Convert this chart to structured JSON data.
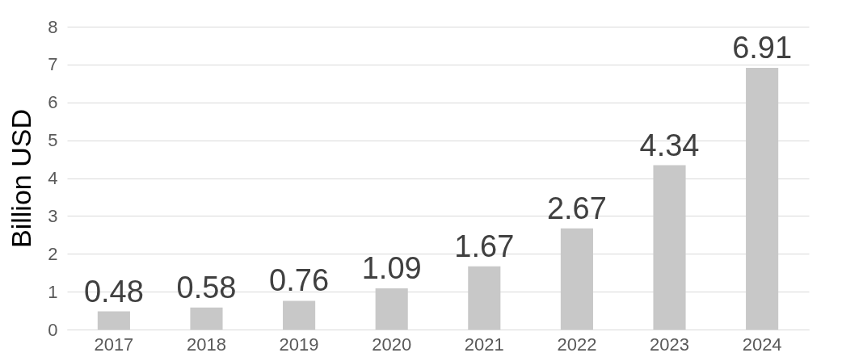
{
  "chart_data": {
    "type": "bar",
    "ylabel": "Billion USD",
    "categories": [
      "2017",
      "2018",
      "2019",
      "2020",
      "2021",
      "2022",
      "2023",
      "2024"
    ],
    "values": [
      0.48,
      0.58,
      0.76,
      1.09,
      1.67,
      2.67,
      4.34,
      6.91
    ],
    "color": "#c8c8c8",
    "ylim": [
      0,
      8
    ],
    "yticks": [
      0,
      1,
      2,
      3,
      4,
      5,
      6,
      7,
      8
    ],
    "grid": "y",
    "data_labels": true
  }
}
